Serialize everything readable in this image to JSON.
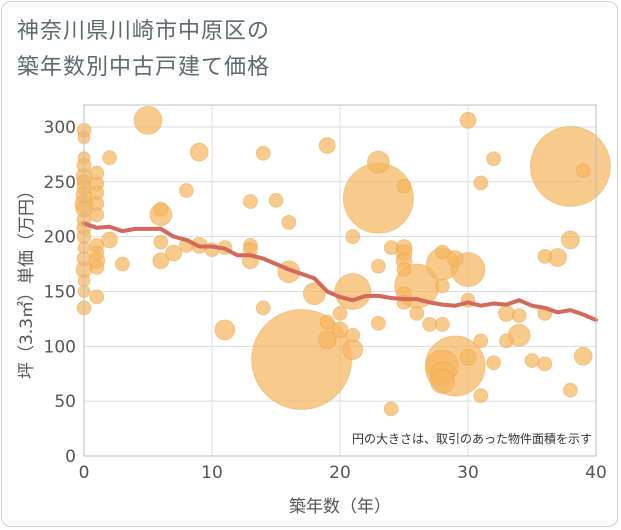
{
  "title": "神奈川県川崎市中原区の\n築年数別中古戸建て価格",
  "chart_data": {
    "type": "scatter",
    "title": "神奈川県川崎市中原区の築年数別中古戸建て価格",
    "xlabel": "築年数（年）",
    "ylabel": "坪（3.3㎡）単価（万円）",
    "xlim": [
      0,
      40
    ],
    "ylim": [
      0,
      320
    ],
    "x_ticks": [
      0,
      10,
      20,
      30,
      40
    ],
    "y_ticks": [
      0,
      50,
      100,
      150,
      200,
      250,
      300
    ],
    "grid": true,
    "annotation": "円の大きさは、取引のあった物件面積を示す",
    "colors": {
      "bubble": "#f5b65e",
      "bubble_stroke": "#e8a24a",
      "trend": "#d4685a",
      "grid": "#d8dee4",
      "plot_border": "#b8c0c8"
    },
    "bubbles": [
      {
        "x": 0,
        "y": 297,
        "s": 7
      },
      {
        "x": 0,
        "y": 290,
        "s": 6
      },
      {
        "x": 0,
        "y": 272,
        "s": 6
      },
      {
        "x": 0,
        "y": 265,
        "s": 7
      },
      {
        "x": 0,
        "y": 255,
        "s": 8
      },
      {
        "x": 0,
        "y": 250,
        "s": 7
      },
      {
        "x": 0,
        "y": 245,
        "s": 7
      },
      {
        "x": 0,
        "y": 238,
        "s": 8
      },
      {
        "x": 0,
        "y": 230,
        "s": 9
      },
      {
        "x": 0,
        "y": 225,
        "s": 8
      },
      {
        "x": 0,
        "y": 215,
        "s": 7
      },
      {
        "x": 0,
        "y": 208,
        "s": 7
      },
      {
        "x": 0,
        "y": 200,
        "s": 7
      },
      {
        "x": 0,
        "y": 190,
        "s": 6
      },
      {
        "x": 0,
        "y": 180,
        "s": 7
      },
      {
        "x": 0,
        "y": 170,
        "s": 8
      },
      {
        "x": 0,
        "y": 160,
        "s": 6
      },
      {
        "x": 0,
        "y": 150,
        "s": 6
      },
      {
        "x": 0,
        "y": 135,
        "s": 7
      },
      {
        "x": 1,
        "y": 258,
        "s": 7
      },
      {
        "x": 1,
        "y": 248,
        "s": 7
      },
      {
        "x": 1,
        "y": 240,
        "s": 7
      },
      {
        "x": 1,
        "y": 230,
        "s": 7
      },
      {
        "x": 1,
        "y": 220,
        "s": 7
      },
      {
        "x": 1,
        "y": 192,
        "s": 7
      },
      {
        "x": 1,
        "y": 185,
        "s": 7
      },
      {
        "x": 1,
        "y": 178,
        "s": 8
      },
      {
        "x": 1,
        "y": 172,
        "s": 7
      },
      {
        "x": 1,
        "y": 145,
        "s": 7
      },
      {
        "x": 2,
        "y": 272,
        "s": 7
      },
      {
        "x": 2,
        "y": 197,
        "s": 8
      },
      {
        "x": 3,
        "y": 175,
        "s": 7
      },
      {
        "x": 5,
        "y": 306,
        "s": 14
      },
      {
        "x": 6,
        "y": 225,
        "s": 7
      },
      {
        "x": 6,
        "y": 220,
        "s": 11
      },
      {
        "x": 6,
        "y": 195,
        "s": 7
      },
      {
        "x": 6,
        "y": 178,
        "s": 8
      },
      {
        "x": 7,
        "y": 185,
        "s": 8
      },
      {
        "x": 8,
        "y": 242,
        "s": 7
      },
      {
        "x": 8,
        "y": 192,
        "s": 7
      },
      {
        "x": 9,
        "y": 277,
        "s": 9
      },
      {
        "x": 9,
        "y": 192,
        "s": 8
      },
      {
        "x": 10,
        "y": 188,
        "s": 7
      },
      {
        "x": 11,
        "y": 190,
        "s": 7
      },
      {
        "x": 11,
        "y": 115,
        "s": 10
      },
      {
        "x": 13,
        "y": 232,
        "s": 7
      },
      {
        "x": 13,
        "y": 192,
        "s": 7
      },
      {
        "x": 13,
        "y": 188,
        "s": 7
      },
      {
        "x": 13,
        "y": 178,
        "s": 8
      },
      {
        "x": 14,
        "y": 276,
        "s": 7
      },
      {
        "x": 14,
        "y": 135,
        "s": 7
      },
      {
        "x": 15,
        "y": 233,
        "s": 7
      },
      {
        "x": 16,
        "y": 213,
        "s": 7
      },
      {
        "x": 16,
        "y": 168,
        "s": 11
      },
      {
        "x": 17,
        "y": 88,
        "s": 50
      },
      {
        "x": 18,
        "y": 148,
        "s": 11
      },
      {
        "x": 19,
        "y": 283,
        "s": 8
      },
      {
        "x": 19,
        "y": 122,
        "s": 7
      },
      {
        "x": 19,
        "y": 106,
        "s": 9
      },
      {
        "x": 20,
        "y": 130,
        "s": 7
      },
      {
        "x": 20,
        "y": 115,
        "s": 8
      },
      {
        "x": 21,
        "y": 200,
        "s": 7
      },
      {
        "x": 21,
        "y": 150,
        "s": 18
      },
      {
        "x": 21,
        "y": 110,
        "s": 7
      },
      {
        "x": 21,
        "y": 97,
        "s": 10
      },
      {
        "x": 23,
        "y": 268,
        "s": 11
      },
      {
        "x": 23,
        "y": 235,
        "s": 35
      },
      {
        "x": 23,
        "y": 173,
        "s": 7
      },
      {
        "x": 23,
        "y": 121,
        "s": 7
      },
      {
        "x": 24,
        "y": 190,
        "s": 7
      },
      {
        "x": 24,
        "y": 43,
        "s": 7
      },
      {
        "x": 25,
        "y": 246,
        "s": 7
      },
      {
        "x": 25,
        "y": 190,
        "s": 8
      },
      {
        "x": 25,
        "y": 185,
        "s": 8
      },
      {
        "x": 25,
        "y": 178,
        "s": 8
      },
      {
        "x": 25,
        "y": 170,
        "s": 7
      },
      {
        "x": 25,
        "y": 148,
        "s": 7
      },
      {
        "x": 25,
        "y": 140,
        "s": 7
      },
      {
        "x": 26,
        "y": 155,
        "s": 22
      },
      {
        "x": 26,
        "y": 130,
        "s": 7
      },
      {
        "x": 27,
        "y": 120,
        "s": 7
      },
      {
        "x": 28,
        "y": 186,
        "s": 7
      },
      {
        "x": 28,
        "y": 175,
        "s": 16
      },
      {
        "x": 28,
        "y": 155,
        "s": 7
      },
      {
        "x": 28,
        "y": 120,
        "s": 7
      },
      {
        "x": 28,
        "y": 82,
        "s": 16
      },
      {
        "x": 28,
        "y": 75,
        "s": 12
      },
      {
        "x": 28,
        "y": 68,
        "s": 12
      },
      {
        "x": 29,
        "y": 180,
        "s": 8
      },
      {
        "x": 29,
        "y": 82,
        "s": 30
      },
      {
        "x": 30,
        "y": 306,
        "s": 8
      },
      {
        "x": 30,
        "y": 170,
        "s": 17
      },
      {
        "x": 30,
        "y": 142,
        "s": 7
      },
      {
        "x": 30,
        "y": 90,
        "s": 8
      },
      {
        "x": 31,
        "y": 249,
        "s": 7
      },
      {
        "x": 31,
        "y": 105,
        "s": 7
      },
      {
        "x": 31,
        "y": 55,
        "s": 7
      },
      {
        "x": 32,
        "y": 271,
        "s": 7
      },
      {
        "x": 32,
        "y": 85,
        "s": 7
      },
      {
        "x": 33,
        "y": 130,
        "s": 8
      },
      {
        "x": 33,
        "y": 105,
        "s": 7
      },
      {
        "x": 34,
        "y": 128,
        "s": 7
      },
      {
        "x": 34,
        "y": 110,
        "s": 11
      },
      {
        "x": 35,
        "y": 87,
        "s": 7
      },
      {
        "x": 36,
        "y": 182,
        "s": 7
      },
      {
        "x": 36,
        "y": 130,
        "s": 7
      },
      {
        "x": 36,
        "y": 84,
        "s": 7
      },
      {
        "x": 37,
        "y": 181,
        "s": 9
      },
      {
        "x": 38,
        "y": 264,
        "s": 40
      },
      {
        "x": 38,
        "y": 197,
        "s": 9
      },
      {
        "x": 38,
        "y": 60,
        "s": 7
      },
      {
        "x": 39,
        "y": 260,
        "s": 7
      },
      {
        "x": 39,
        "y": 91,
        "s": 9
      }
    ],
    "trend": {
      "x": [
        0,
        1,
        2,
        3,
        4,
        5,
        6,
        7,
        8,
        9,
        10,
        11,
        12,
        13,
        14,
        15,
        16,
        17,
        18,
        19,
        20,
        21,
        22,
        23,
        24,
        25,
        26,
        27,
        28,
        29,
        30,
        31,
        32,
        33,
        34,
        35,
        36,
        37,
        38,
        39,
        40
      ],
      "y": [
        212,
        208,
        209,
        205,
        207,
        207,
        207,
        200,
        197,
        191,
        191,
        189,
        183,
        183,
        180,
        175,
        170,
        166,
        162,
        150,
        145,
        142,
        146,
        146,
        144,
        143,
        143,
        140,
        138,
        137,
        140,
        137,
        139,
        138,
        142,
        137,
        135,
        131,
        133,
        129,
        124
      ]
    }
  }
}
